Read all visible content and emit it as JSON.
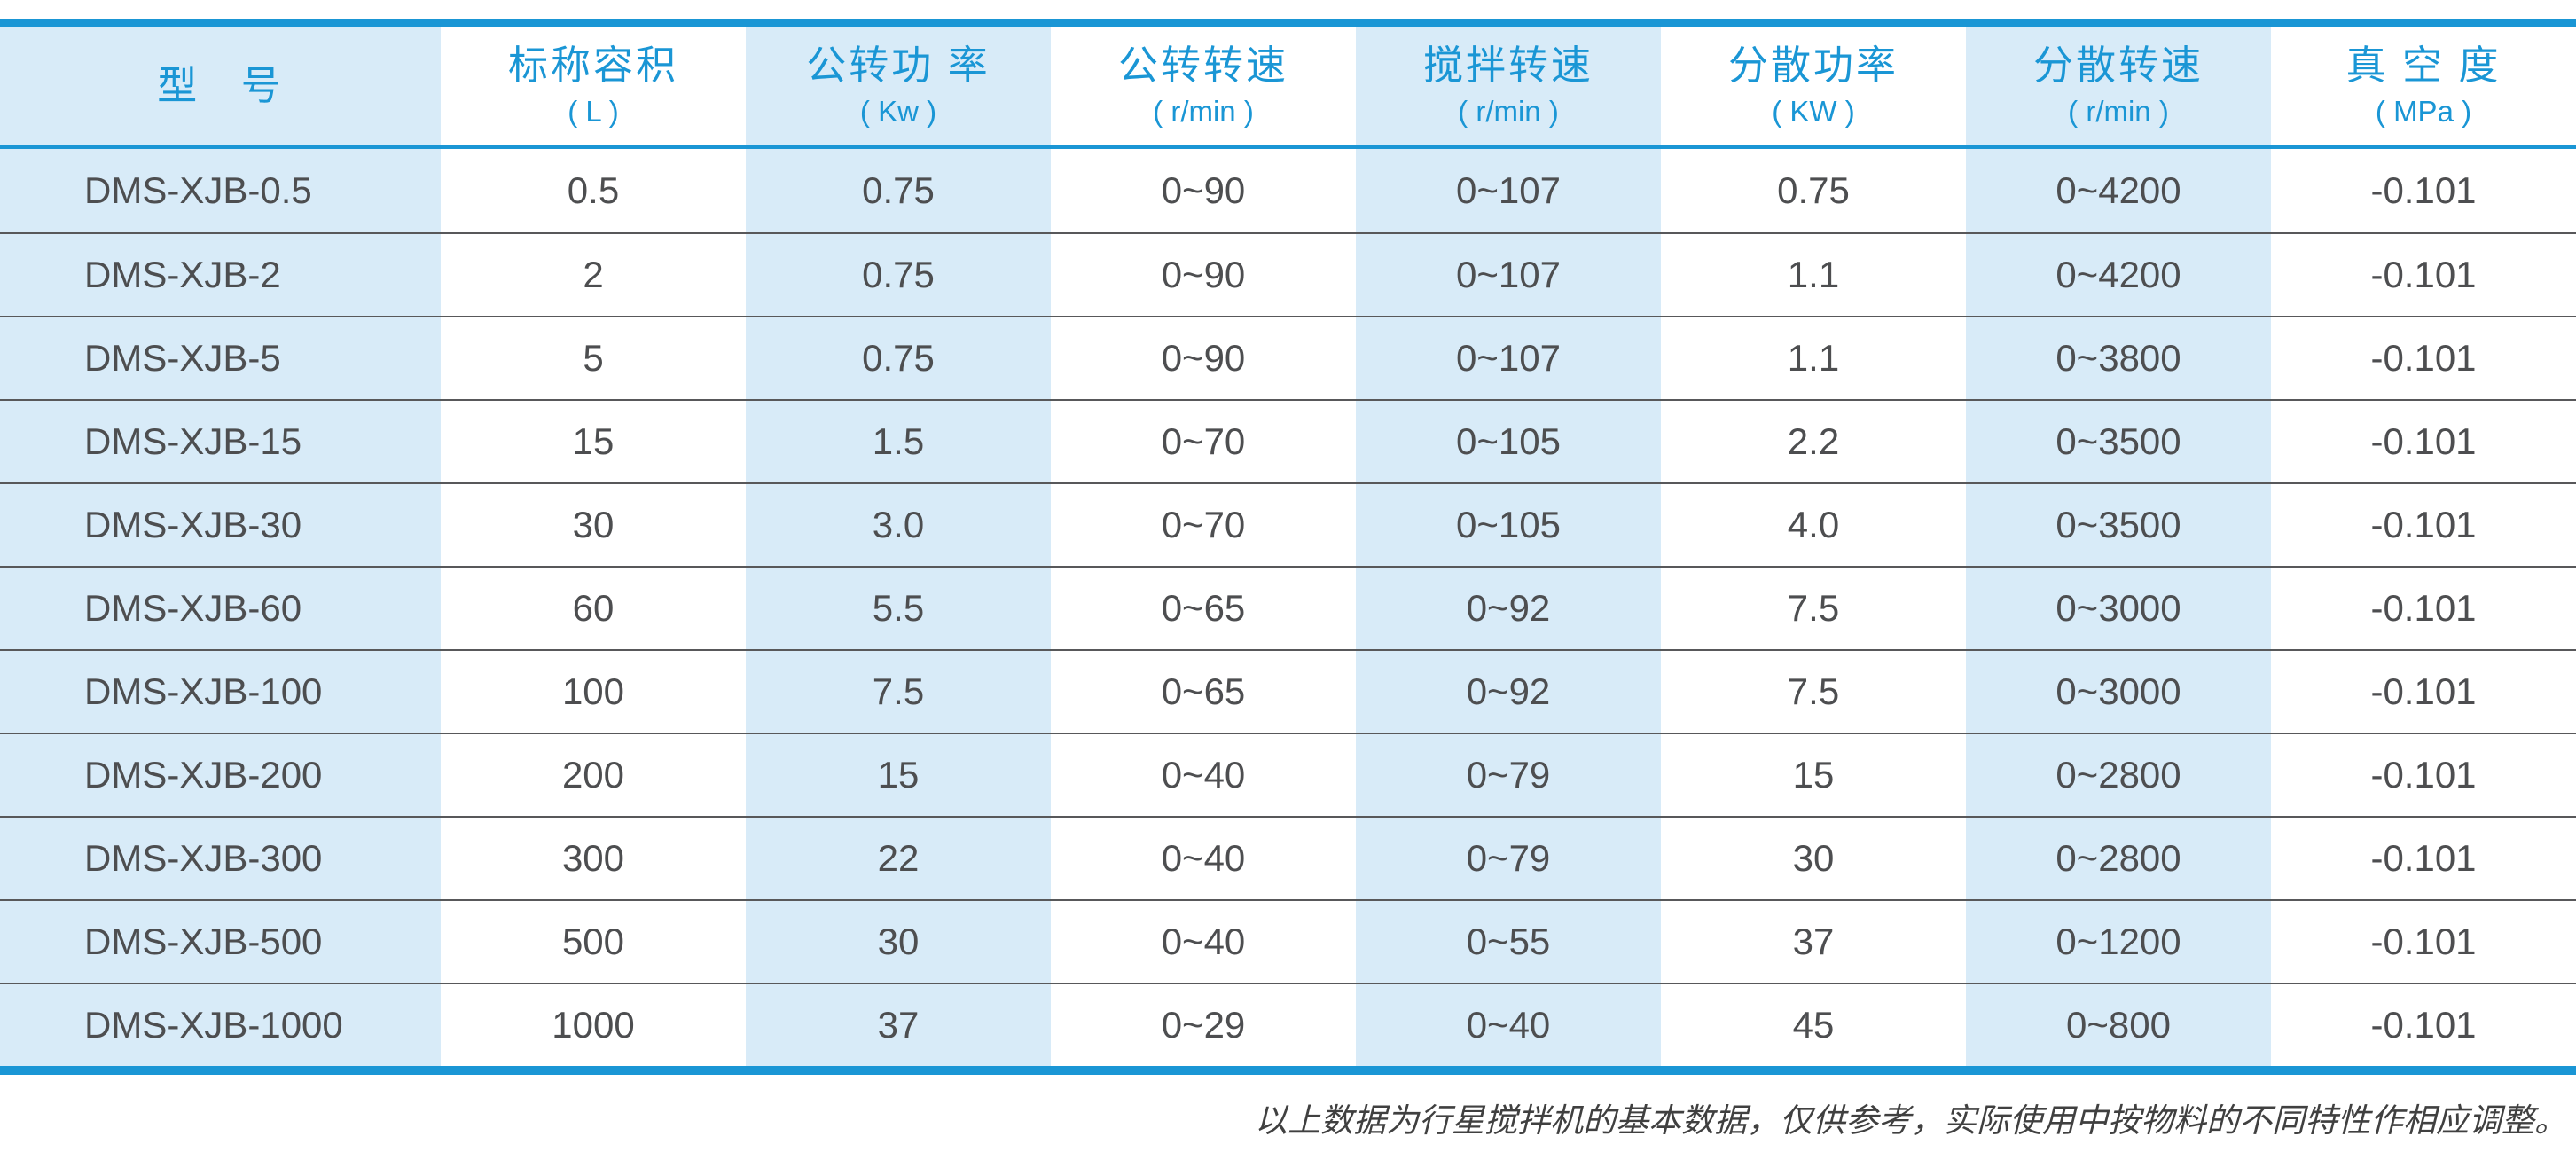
{
  "table": {
    "columns": [
      {
        "title": "型   号",
        "unit": ""
      },
      {
        "title": "标称容积",
        "unit": "( L )"
      },
      {
        "title": "公转功 率",
        "unit": "( Kw )"
      },
      {
        "title": "公转转速",
        "unit": "( r/min )"
      },
      {
        "title": "搅拌转速",
        "unit": "( r/min )"
      },
      {
        "title": "分散功率",
        "unit": "( KW )"
      },
      {
        "title": "分散转速",
        "unit": "( r/min )"
      },
      {
        "title": "真 空 度",
        "unit": "( MPa )"
      }
    ],
    "rows": [
      [
        "DMS-XJB-0.5",
        "0.5",
        "0.75",
        "0~90",
        "0~107",
        "0.75",
        "0~4200",
        "-0.101"
      ],
      [
        "DMS-XJB-2",
        "2",
        "0.75",
        "0~90",
        "0~107",
        "1.1",
        "0~4200",
        "-0.101"
      ],
      [
        "DMS-XJB-5",
        "5",
        "0.75",
        "0~90",
        "0~107",
        "1.1",
        "0~3800",
        "-0.101"
      ],
      [
        "DMS-XJB-15",
        "15",
        "1.5",
        "0~70",
        "0~105",
        "2.2",
        "0~3500",
        "-0.101"
      ],
      [
        "DMS-XJB-30",
        "30",
        "3.0",
        "0~70",
        "0~105",
        "4.0",
        "0~3500",
        "-0.101"
      ],
      [
        "DMS-XJB-60",
        "60",
        "5.5",
        "0~65",
        "0~92",
        "7.5",
        "0~3000",
        "-0.101"
      ],
      [
        "DMS-XJB-100",
        "100",
        "7.5",
        "0~65",
        "0~92",
        "7.5",
        "0~3000",
        "-0.101"
      ],
      [
        "DMS-XJB-200",
        "200",
        "15",
        "0~40",
        "0~79",
        "15",
        "0~2800",
        "-0.101"
      ],
      [
        "DMS-XJB-300",
        "300",
        "22",
        "0~40",
        "0~79",
        "30",
        "0~2800",
        "-0.101"
      ],
      [
        "DMS-XJB-500",
        "500",
        "30",
        "0~40",
        "0~55",
        "37",
        "0~1200",
        "-0.101"
      ],
      [
        "DMS-XJB-1000",
        "1000",
        "37",
        "0~29",
        "0~40",
        "45",
        "0~800",
        "-0.101"
      ]
    ]
  },
  "footnote": "以上数据为行星搅拌机的基本数据，仅供参考，实际使用中按物料的不同特性作相应调整。",
  "colors": {
    "accent": "#1a96d5",
    "column_fill": "#d8ebf8",
    "text": "#4d4e50",
    "separator": "#58585a",
    "footnote_text": "#404040"
  }
}
